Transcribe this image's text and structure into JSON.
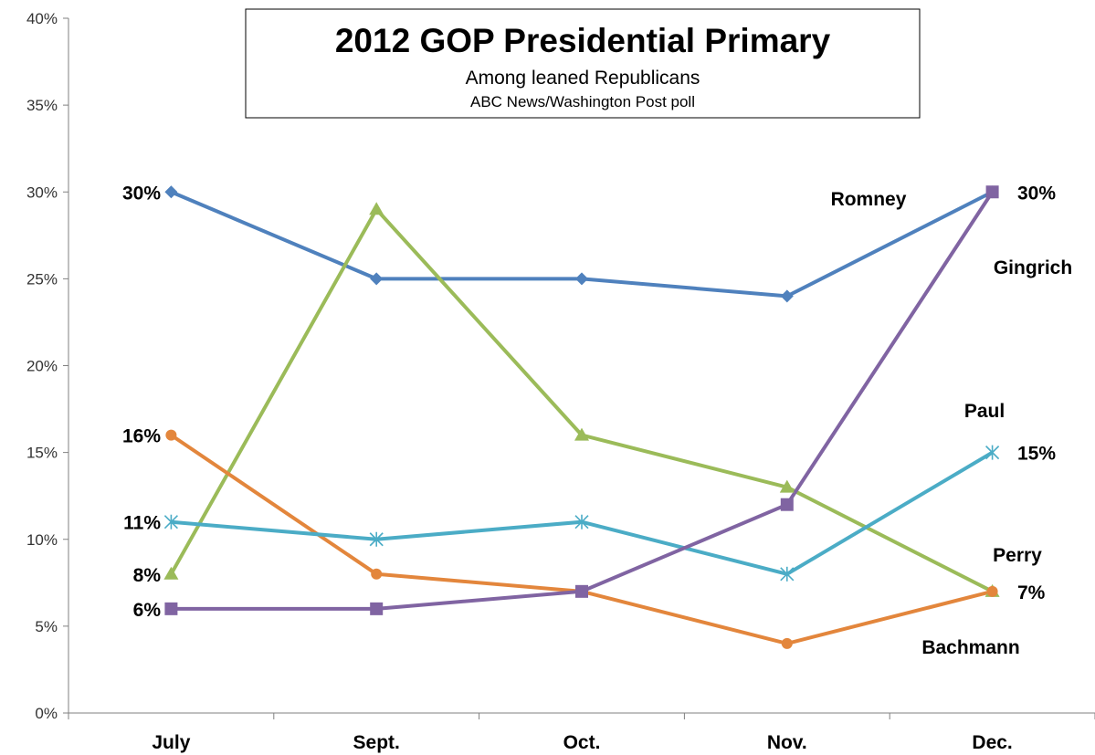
{
  "chart_data": {
    "type": "line",
    "title": "2012 GOP Presidential Primary",
    "subtitle": "Among leaned Republicans",
    "source": "ABC News/Washington Post poll",
    "categories": [
      "July",
      "Sept.",
      "Oct.",
      "Nov.",
      "Dec."
    ],
    "ylim": [
      0,
      40
    ],
    "y_ticks": [
      "0%",
      "5%",
      "10%",
      "15%",
      "20%",
      "25%",
      "30%",
      "35%",
      "40%"
    ],
    "grid": false,
    "series": [
      {
        "name": "Romney",
        "color": "#4f81bd",
        "marker": "diamond",
        "values": [
          30,
          25,
          25,
          24,
          30
        ]
      },
      {
        "name": "Perry",
        "color": "#9bbb59",
        "marker": "triangle",
        "values": [
          8,
          29,
          16,
          13,
          7
        ]
      },
      {
        "name": "Bachmann",
        "color": "#e3863c",
        "marker": "circle",
        "values": [
          16,
          8,
          7,
          4,
          7
        ]
      },
      {
        "name": "Paul",
        "color": "#4bacc6",
        "marker": "asterisk",
        "values": [
          11,
          10,
          11,
          8,
          15
        ]
      },
      {
        "name": "Gingrich",
        "color": "#8064a2",
        "marker": "square",
        "values": [
          6,
          6,
          7,
          12,
          30
        ]
      }
    ],
    "data_labels": {
      "left": [
        "30%",
        "16%",
        "11%",
        "8%",
        "6%"
      ],
      "right": [
        "30%",
        "15%",
        "7%"
      ]
    }
  }
}
